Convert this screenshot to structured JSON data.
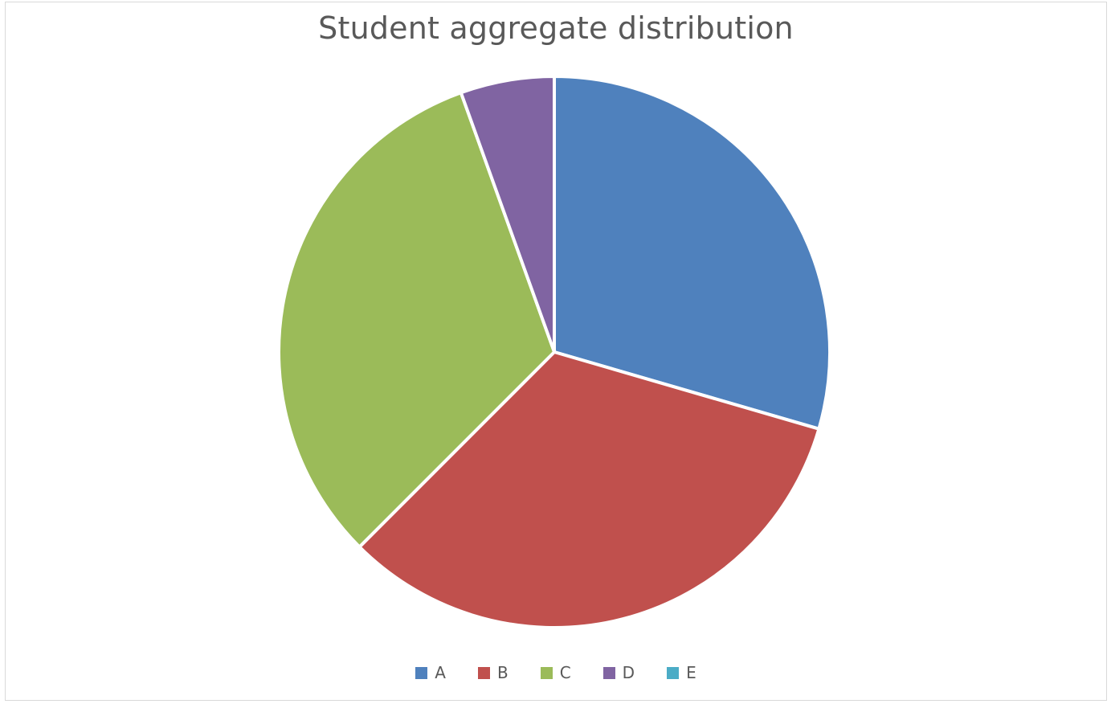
{
  "chart_data": {
    "type": "pie",
    "title": "Student aggregate distribution",
    "categories": [
      "A",
      "B",
      "C",
      "D",
      "E"
    ],
    "values": [
      29.5,
      33,
      32,
      5.5,
      0
    ],
    "colors": [
      "#4f81bd",
      "#c0504d",
      "#9bbb59",
      "#8064a2",
      "#4bacc6"
    ],
    "start_angle": "12 o'clock",
    "direction": "clockwise",
    "legend": "bottom"
  }
}
